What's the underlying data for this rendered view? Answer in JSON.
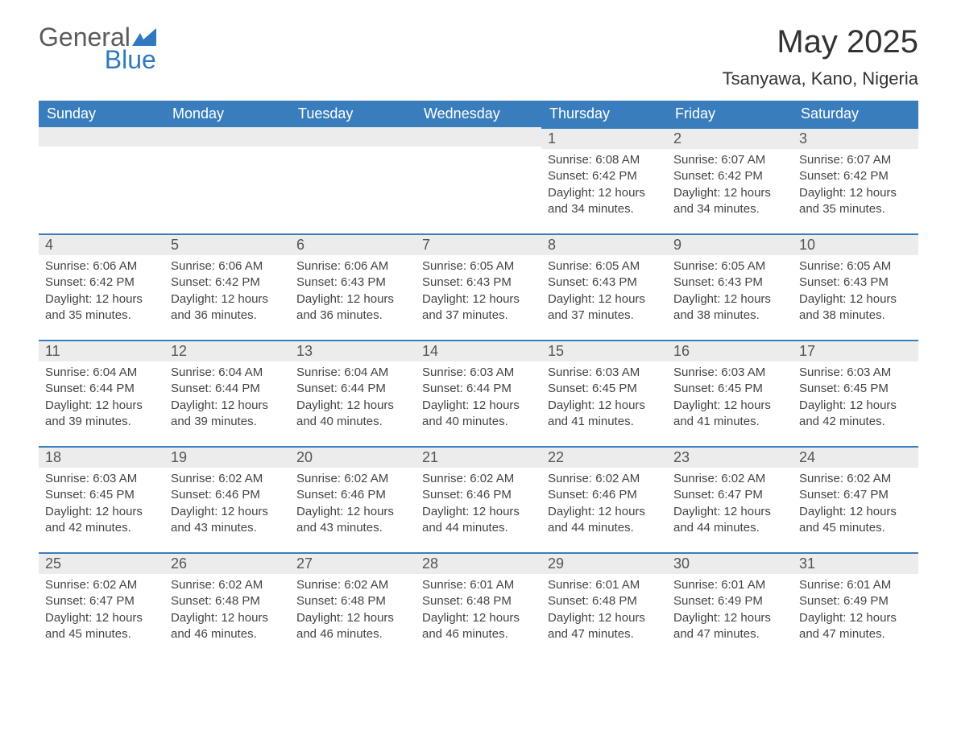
{
  "logo": {
    "text_gray": "General",
    "text_blue": "Blue",
    "mark_color": "#2f7abf"
  },
  "title": "May 2025",
  "location": "Tsanyawa, Kano, Nigeria",
  "colors": {
    "header_bg": "#3a7dbc",
    "header_text": "#ffffff",
    "daynum_bg": "#ececec",
    "daynum_border": "#3a7dbc",
    "body_text": "#444444",
    "title_text": "#333333",
    "page_bg": "#ffffff"
  },
  "typography": {
    "title_fontsize": 40,
    "location_fontsize": 22,
    "header_fontsize": 18,
    "daynum_fontsize": 18,
    "content_fontsize": 15
  },
  "day_headers": [
    "Sunday",
    "Monday",
    "Tuesday",
    "Wednesday",
    "Thursday",
    "Friday",
    "Saturday"
  ],
  "weeks": [
    [
      null,
      null,
      null,
      null,
      {
        "n": "1",
        "sunrise": "Sunrise: 6:08 AM",
        "sunset": "Sunset: 6:42 PM",
        "day1": "Daylight: 12 hours",
        "day2": "and 34 minutes."
      },
      {
        "n": "2",
        "sunrise": "Sunrise: 6:07 AM",
        "sunset": "Sunset: 6:42 PM",
        "day1": "Daylight: 12 hours",
        "day2": "and 34 minutes."
      },
      {
        "n": "3",
        "sunrise": "Sunrise: 6:07 AM",
        "sunset": "Sunset: 6:42 PM",
        "day1": "Daylight: 12 hours",
        "day2": "and 35 minutes."
      }
    ],
    [
      {
        "n": "4",
        "sunrise": "Sunrise: 6:06 AM",
        "sunset": "Sunset: 6:42 PM",
        "day1": "Daylight: 12 hours",
        "day2": "and 35 minutes."
      },
      {
        "n": "5",
        "sunrise": "Sunrise: 6:06 AM",
        "sunset": "Sunset: 6:42 PM",
        "day1": "Daylight: 12 hours",
        "day2": "and 36 minutes."
      },
      {
        "n": "6",
        "sunrise": "Sunrise: 6:06 AM",
        "sunset": "Sunset: 6:43 PM",
        "day1": "Daylight: 12 hours",
        "day2": "and 36 minutes."
      },
      {
        "n": "7",
        "sunrise": "Sunrise: 6:05 AM",
        "sunset": "Sunset: 6:43 PM",
        "day1": "Daylight: 12 hours",
        "day2": "and 37 minutes."
      },
      {
        "n": "8",
        "sunrise": "Sunrise: 6:05 AM",
        "sunset": "Sunset: 6:43 PM",
        "day1": "Daylight: 12 hours",
        "day2": "and 37 minutes."
      },
      {
        "n": "9",
        "sunrise": "Sunrise: 6:05 AM",
        "sunset": "Sunset: 6:43 PM",
        "day1": "Daylight: 12 hours",
        "day2": "and 38 minutes."
      },
      {
        "n": "10",
        "sunrise": "Sunrise: 6:05 AM",
        "sunset": "Sunset: 6:43 PM",
        "day1": "Daylight: 12 hours",
        "day2": "and 38 minutes."
      }
    ],
    [
      {
        "n": "11",
        "sunrise": "Sunrise: 6:04 AM",
        "sunset": "Sunset: 6:44 PM",
        "day1": "Daylight: 12 hours",
        "day2": "and 39 minutes."
      },
      {
        "n": "12",
        "sunrise": "Sunrise: 6:04 AM",
        "sunset": "Sunset: 6:44 PM",
        "day1": "Daylight: 12 hours",
        "day2": "and 39 minutes."
      },
      {
        "n": "13",
        "sunrise": "Sunrise: 6:04 AM",
        "sunset": "Sunset: 6:44 PM",
        "day1": "Daylight: 12 hours",
        "day2": "and 40 minutes."
      },
      {
        "n": "14",
        "sunrise": "Sunrise: 6:03 AM",
        "sunset": "Sunset: 6:44 PM",
        "day1": "Daylight: 12 hours",
        "day2": "and 40 minutes."
      },
      {
        "n": "15",
        "sunrise": "Sunrise: 6:03 AM",
        "sunset": "Sunset: 6:45 PM",
        "day1": "Daylight: 12 hours",
        "day2": "and 41 minutes."
      },
      {
        "n": "16",
        "sunrise": "Sunrise: 6:03 AM",
        "sunset": "Sunset: 6:45 PM",
        "day1": "Daylight: 12 hours",
        "day2": "and 41 minutes."
      },
      {
        "n": "17",
        "sunrise": "Sunrise: 6:03 AM",
        "sunset": "Sunset: 6:45 PM",
        "day1": "Daylight: 12 hours",
        "day2": "and 42 minutes."
      }
    ],
    [
      {
        "n": "18",
        "sunrise": "Sunrise: 6:03 AM",
        "sunset": "Sunset: 6:45 PM",
        "day1": "Daylight: 12 hours",
        "day2": "and 42 minutes."
      },
      {
        "n": "19",
        "sunrise": "Sunrise: 6:02 AM",
        "sunset": "Sunset: 6:46 PM",
        "day1": "Daylight: 12 hours",
        "day2": "and 43 minutes."
      },
      {
        "n": "20",
        "sunrise": "Sunrise: 6:02 AM",
        "sunset": "Sunset: 6:46 PM",
        "day1": "Daylight: 12 hours",
        "day2": "and 43 minutes."
      },
      {
        "n": "21",
        "sunrise": "Sunrise: 6:02 AM",
        "sunset": "Sunset: 6:46 PM",
        "day1": "Daylight: 12 hours",
        "day2": "and 44 minutes."
      },
      {
        "n": "22",
        "sunrise": "Sunrise: 6:02 AM",
        "sunset": "Sunset: 6:46 PM",
        "day1": "Daylight: 12 hours",
        "day2": "and 44 minutes."
      },
      {
        "n": "23",
        "sunrise": "Sunrise: 6:02 AM",
        "sunset": "Sunset: 6:47 PM",
        "day1": "Daylight: 12 hours",
        "day2": "and 44 minutes."
      },
      {
        "n": "24",
        "sunrise": "Sunrise: 6:02 AM",
        "sunset": "Sunset: 6:47 PM",
        "day1": "Daylight: 12 hours",
        "day2": "and 45 minutes."
      }
    ],
    [
      {
        "n": "25",
        "sunrise": "Sunrise: 6:02 AM",
        "sunset": "Sunset: 6:47 PM",
        "day1": "Daylight: 12 hours",
        "day2": "and 45 minutes."
      },
      {
        "n": "26",
        "sunrise": "Sunrise: 6:02 AM",
        "sunset": "Sunset: 6:48 PM",
        "day1": "Daylight: 12 hours",
        "day2": "and 46 minutes."
      },
      {
        "n": "27",
        "sunrise": "Sunrise: 6:02 AM",
        "sunset": "Sunset: 6:48 PM",
        "day1": "Daylight: 12 hours",
        "day2": "and 46 minutes."
      },
      {
        "n": "28",
        "sunrise": "Sunrise: 6:01 AM",
        "sunset": "Sunset: 6:48 PM",
        "day1": "Daylight: 12 hours",
        "day2": "and 46 minutes."
      },
      {
        "n": "29",
        "sunrise": "Sunrise: 6:01 AM",
        "sunset": "Sunset: 6:48 PM",
        "day1": "Daylight: 12 hours",
        "day2": "and 47 minutes."
      },
      {
        "n": "30",
        "sunrise": "Sunrise: 6:01 AM",
        "sunset": "Sunset: 6:49 PM",
        "day1": "Daylight: 12 hours",
        "day2": "and 47 minutes."
      },
      {
        "n": "31",
        "sunrise": "Sunrise: 6:01 AM",
        "sunset": "Sunset: 6:49 PM",
        "day1": "Daylight: 12 hours",
        "day2": "and 47 minutes."
      }
    ]
  ]
}
